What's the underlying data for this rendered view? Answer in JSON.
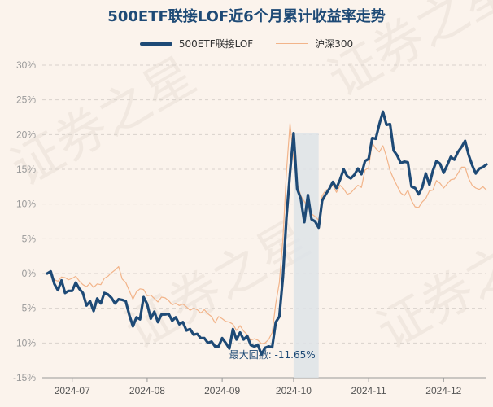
{
  "chart_data": {
    "type": "line",
    "title": "500ETF联接LOF近6个月累计收益率走势",
    "xlabel": "",
    "ylabel": "",
    "ylim": [
      -15,
      30
    ],
    "yticks": [
      "30%",
      "25%",
      "20%",
      "15%",
      "10%",
      "5%",
      "0%",
      "-5%",
      "-10%",
      "-15%"
    ],
    "xticks": [
      "2024-07",
      "2024-08",
      "2024-09",
      "2024-10",
      "2024-11",
      "2024-12"
    ],
    "legend_position": "top-center",
    "grid": "horizontal-dashed",
    "annotation": "最大回撤: -11.65%",
    "watermark": "证券之星",
    "series": [
      {
        "name": "500ETF联接LOF",
        "color": "#1e4a76",
        "values": [
          0,
          0.3,
          -1.5,
          -2.4,
          -1.0,
          -2.8,
          -2.5,
          -2.5,
          -1.3,
          -2.2,
          -2.8,
          -4.6,
          -4.0,
          -5.4,
          -3.6,
          -4.3,
          -2.8,
          -3.0,
          -3.5,
          -4.3,
          -3.7,
          -3.8,
          -4.0,
          -6.0,
          -7.6,
          -6.3,
          -6.6,
          -3.4,
          -4.4,
          -6.5,
          -5.5,
          -7.0,
          -5.9,
          -5.9,
          -5.8,
          -6.8,
          -6.3,
          -7.3,
          -7.0,
          -8.2,
          -8.0,
          -8.8,
          -8.7,
          -9.3,
          -9.3,
          -10.0,
          -9.8,
          -10.5,
          -10.5,
          -9.3,
          -10.0,
          -10.8,
          -8.0,
          -9.5,
          -8.5,
          -9.5,
          -9.0,
          -10.3,
          -10.5,
          -10.3,
          -11.65,
          -10.7,
          -10.5,
          -10.6,
          -7.0,
          -6.2,
          -0.5,
          8.0,
          14.5,
          20.2,
          12.2,
          10.8,
          7.4,
          11.3,
          7.8,
          7.5,
          6.6,
          10.5,
          11.4,
          12.2,
          13.2,
          12.3,
          13.5,
          15.0,
          14.0,
          13.7,
          14.2,
          15.1,
          14.3,
          16.2,
          16.5,
          19.5,
          19.4,
          21.5,
          23.3,
          21.4,
          21.5,
          17.7,
          17.0,
          15.9,
          16.1,
          16.0,
          12.5,
          12.3,
          11.4,
          12.4,
          14.4,
          12.8,
          14.8,
          16.2,
          15.8,
          14.5,
          15.6,
          16.8,
          16.4,
          17.5,
          18.2,
          19.1,
          17.1,
          15.6,
          14.4,
          15.1,
          15.3,
          15.7
        ]
      },
      {
        "name": "沪深300",
        "color": "#f2b48a",
        "values": [
          0,
          0.2,
          -0.9,
          -1.1,
          -0.5,
          -0.6,
          -0.9,
          -0.7,
          -0.4,
          -1.1,
          -1.6,
          -1.9,
          -1.4,
          -2.0,
          -1.5,
          -1.6,
          -0.7,
          -0.4,
          0.1,
          0.5,
          1.0,
          -0.8,
          -1.3,
          -2.5,
          -3.7,
          -2.6,
          -2.2,
          -2.3,
          -3.2,
          -3.1,
          -3.6,
          -4.1,
          -3.4,
          -3.5,
          -3.9,
          -4.5,
          -4.3,
          -4.6,
          -4.4,
          -4.8,
          -5.3,
          -5.0,
          -5.2,
          -5.7,
          -5.2,
          -5.8,
          -6.2,
          -7.1,
          -6.2,
          -6.5,
          -6.9,
          -7.0,
          -7.3,
          -8.2,
          -7.5,
          -8.3,
          -8.8,
          -9.6,
          -9.4,
          -9.6,
          -10.1,
          -10.0,
          -9.5,
          -8.5,
          -4.3,
          -1.3,
          5.0,
          14.6,
          21.6,
          16.5,
          13.0,
          11.2,
          10.4,
          9.5,
          8.6,
          8.2,
          7.7,
          11.2,
          12.0,
          12.2,
          12.7,
          11.7,
          12.7,
          12.2,
          11.4,
          11.6,
          12.2,
          12.7,
          12.4,
          14.9,
          15.2,
          18.8,
          18.0,
          17.5,
          18.4,
          16.8,
          14.8,
          13.6,
          12.6,
          11.6,
          11.2,
          12.0,
          10.5,
          9.6,
          9.5,
          10.3,
          10.8,
          11.9,
          12.0,
          13.4,
          13.0,
          12.3,
          12.9,
          13.5,
          13.6,
          14.4,
          15.3,
          15.3,
          13.7,
          12.7,
          12.3,
          12.1,
          12.5,
          12.0
        ]
      }
    ]
  }
}
